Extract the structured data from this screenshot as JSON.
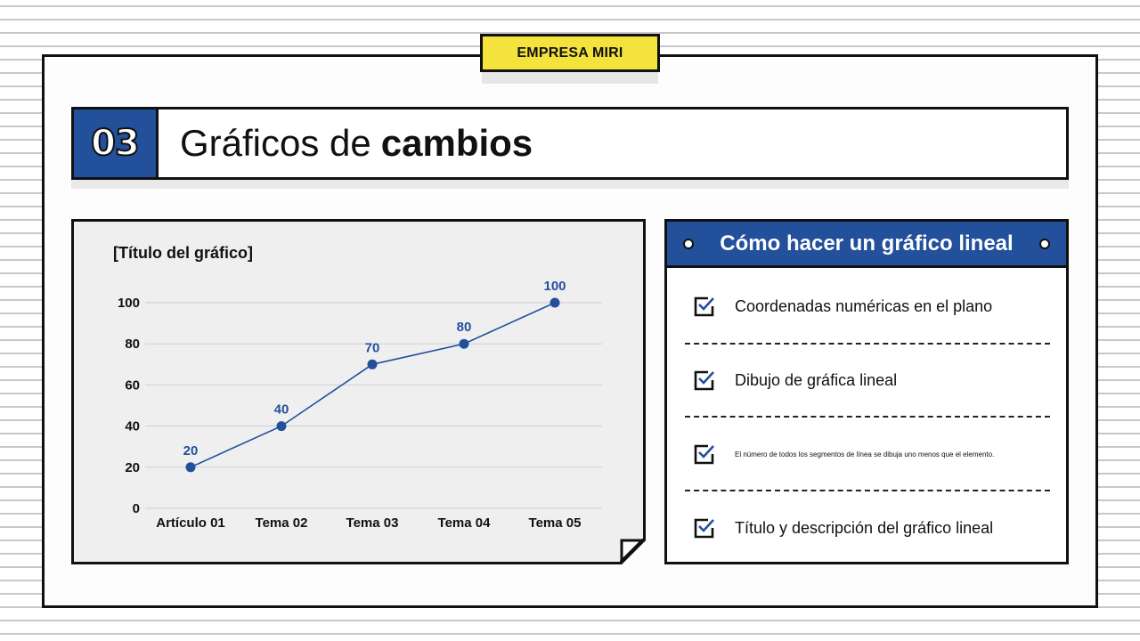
{
  "brand": {
    "label": "EMPRESA MIRI"
  },
  "header": {
    "number": "03",
    "title_light": "Gráficos de",
    "title_bold": "cambios"
  },
  "chart": {
    "title": "[Título del gráfico]"
  },
  "chart_data": {
    "type": "line",
    "title": "[Título del gráfico]",
    "categories": [
      "Artículo 01",
      "Tema 02",
      "Tema 03",
      "Tema 04",
      "Tema 05"
    ],
    "values": [
      20,
      40,
      70,
      80,
      100
    ],
    "data_labels": [
      "20",
      "40",
      "70",
      "80",
      "100"
    ],
    "yticks": [
      "0",
      "20",
      "40",
      "60",
      "80",
      "100"
    ],
    "ylim": [
      0,
      100
    ],
    "xlabel": "",
    "ylabel": "",
    "grid": true,
    "legend": false,
    "color": "#22509b"
  },
  "panel": {
    "title": "Cómo hacer un gráfico lineal",
    "items": [
      {
        "label": "Coordenadas numéricas en el plano"
      },
      {
        "label": "Dibujo de gráfica lineal"
      },
      {
        "label": "El número de todos los segmentos de línea se dibuja uno menos que el elemento."
      },
      {
        "label": "Título y descripción del gráfico lineal"
      }
    ]
  },
  "colors": {
    "accent": "#22509b",
    "brand_yellow": "#f4e33c",
    "card_bg": "#efeff0",
    "ink": "#111111"
  }
}
